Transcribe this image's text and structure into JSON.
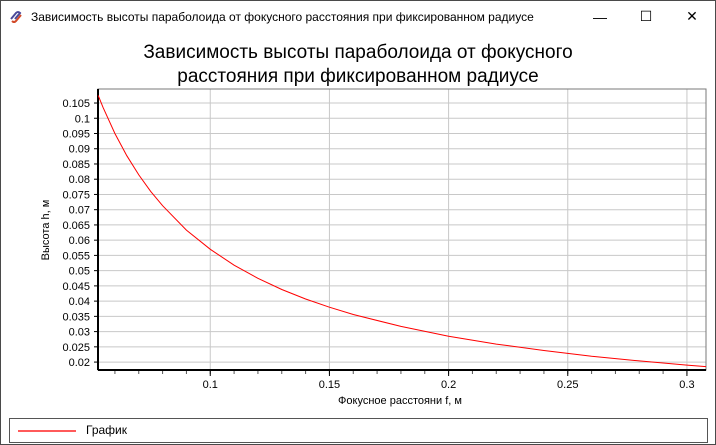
{
  "window": {
    "title": "Зависимость высоты параболоида от фокусного расстояния при фиксированном радиусе",
    "minimize": "—",
    "maximize": "☐",
    "close": "✕"
  },
  "chart_data": {
    "type": "line",
    "title_line1": "Зависимость высоты параболоида от фокусного",
    "title_line2": "расстояния при фиксированном радиусе",
    "xlabel": "Фокусное расстояни f, м",
    "ylabel": "Высота h, м",
    "xlim": [
      0.0529,
      0.308
    ],
    "ylim": [
      0.0174,
      0.1096
    ],
    "x_ticks": [
      "0.1",
      "0.15",
      "0.2",
      "0.25",
      "0.3"
    ],
    "y_ticks": [
      "0.105",
      "0.1",
      "0.095",
      "0.09",
      "0.085",
      "0.08",
      "0.075",
      "0.07",
      "0.065",
      "0.06",
      "0.055",
      "0.05",
      "0.045",
      "0.04",
      "0.035",
      "0.03",
      "0.025",
      "0.02"
    ],
    "grid": true,
    "legend_position": "bottom",
    "series": [
      {
        "name": "График",
        "color": "#ff0000",
        "x": [
          0.053,
          0.055,
          0.06,
          0.065,
          0.07,
          0.075,
          0.08,
          0.09,
          0.1,
          0.11,
          0.12,
          0.13,
          0.14,
          0.15,
          0.16,
          0.18,
          0.2,
          0.22,
          0.24,
          0.26,
          0.28,
          0.3,
          0.308
        ],
        "y": [
          0.1075,
          0.1036,
          0.095,
          0.0877,
          0.0814,
          0.076,
          0.0713,
          0.0633,
          0.057,
          0.0518,
          0.0475,
          0.0438,
          0.0407,
          0.038,
          0.0356,
          0.0317,
          0.0285,
          0.0259,
          0.0238,
          0.0219,
          0.0204,
          0.019,
          0.0185
        ]
      }
    ]
  }
}
